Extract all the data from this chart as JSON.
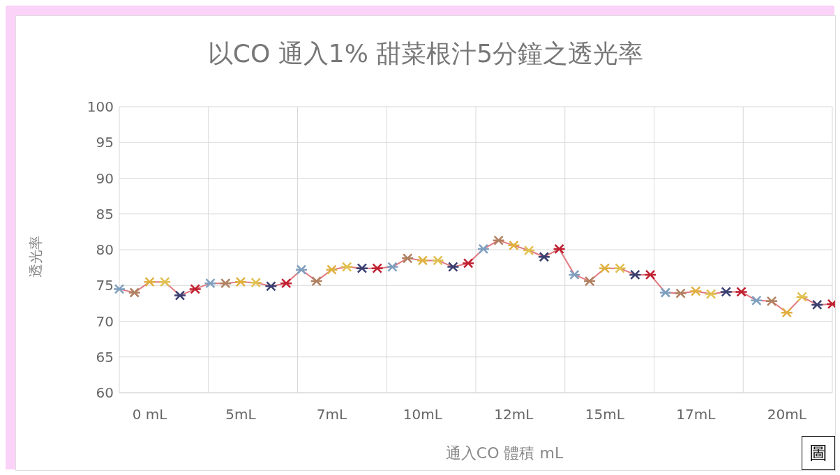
{
  "chart_data": {
    "type": "line",
    "title": "以CO 通入1% 甜菜根汁5分鐘之透光率",
    "xlabel": "通入CO 體積  mL",
    "ylabel": "透光率",
    "categories": [
      null,
      null,
      "0 mL",
      null,
      null,
      null,
      null,
      null,
      "5mL",
      null,
      null,
      null,
      null,
      null,
      "7mL",
      null,
      null,
      null,
      null,
      null,
      "10mL",
      null,
      null,
      null,
      null,
      null,
      "12mL",
      null,
      null,
      null,
      null,
      null,
      "15mL",
      null,
      null,
      null,
      null,
      null,
      "17mL",
      null,
      null,
      null,
      null,
      null,
      "20mL",
      null,
      null,
      null
    ],
    "series": [
      {
        "color": "#e07880",
        "colors": [
          "#7f9fbf",
          "#b08060",
          "#e0b040",
          "#e0c050",
          "#3a3f70",
          "#c02030",
          "#7f9fbf",
          "#b08060",
          "#e0b040",
          "#e0c050",
          "#3a3f70",
          "#c02030",
          "#7f9fbf",
          "#b08060",
          "#e0b040",
          "#e0c050",
          "#3a3f70",
          "#c02030",
          "#7f9fbf",
          "#b08060",
          "#e0b040",
          "#e0c050",
          "#3a3f70",
          "#c02030",
          "#7f9fbf",
          "#b08060",
          "#e0b040",
          "#e0c050",
          "#3a3f70",
          "#c02030",
          "#7f9fbf",
          "#b08060",
          "#e0b040",
          "#e0c050",
          "#3a3f70",
          "#c02030",
          "#7f9fbf",
          "#b08060",
          "#e0b040",
          "#e0c050",
          "#3a3f70",
          "#c02030",
          "#7f9fbf",
          "#b08060",
          "#e0b040",
          "#e0c050",
          "#3a3f70",
          "#c02030"
        ],
        "values": [
          74.5,
          74.0,
          75.5,
          75.5,
          73.6,
          74.5,
          75.3,
          75.3,
          75.5,
          75.4,
          74.9,
          75.3,
          77.2,
          75.6,
          77.2,
          77.6,
          77.4,
          77.4,
          77.6,
          78.8,
          78.5,
          78.5,
          77.6,
          78.1,
          80.1,
          81.3,
          80.6,
          79.9,
          79.0,
          80.1,
          76.5,
          75.6,
          77.4,
          77.4,
          76.5,
          76.5,
          74.0,
          73.9,
          74.2,
          73.8,
          74.1,
          74.1,
          72.9,
          72.8,
          71.2,
          73.4,
          72.3,
          72.4
        ]
      }
    ],
    "ylim": [
      60,
      100
    ],
    "yticks": [
      60,
      65,
      70,
      75,
      80,
      85,
      90,
      95,
      100
    ],
    "grid": true,
    "marker": "cross",
    "line_style": "solid",
    "annotations": [
      "圖"
    ]
  }
}
